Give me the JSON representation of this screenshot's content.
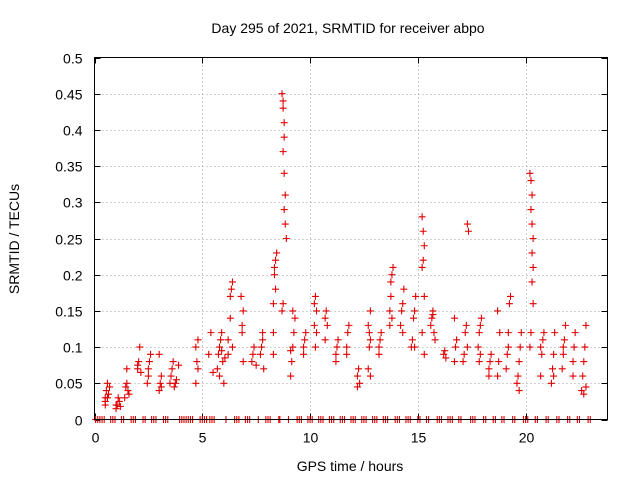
{
  "chart_data": {
    "type": "scatter",
    "title": "Day 295 of 2021, SRMTID for receiver abpo",
    "xlabel": "GPS time / hours",
    "ylabel": "SRMTID / TECUs",
    "xlim": [
      0,
      23.8
    ],
    "ylim": [
      0,
      0.5
    ],
    "x_ticks": [
      0,
      5,
      10,
      15,
      20
    ],
    "x_tick_labels": [
      "0",
      "5",
      "10",
      "15",
      "20"
    ],
    "y_ticks": [
      0,
      0.05,
      0.1,
      0.15,
      0.2,
      0.25,
      0.3,
      0.35,
      0.4,
      0.45,
      0.5
    ],
    "y_tick_labels": [
      "0",
      "0.05",
      "0.1",
      "0.15",
      "0.2",
      "0.25",
      "0.3",
      "0.35",
      "0.4",
      "0.45",
      "0.5"
    ],
    "grid": true,
    "marker": "+",
    "marker_color": "#e00000",
    "series": [
      {
        "name": "SRMTID",
        "points": [
          [
            0.5,
            0.02
          ],
          [
            0.5,
            0.03
          ],
          [
            0.55,
            0.04
          ],
          [
            0.6,
            0.05
          ],
          [
            0.65,
            0.035
          ],
          [
            0.7,
            0.045
          ],
          [
            0.5,
            0.025
          ],
          [
            0.6,
            0.03
          ],
          [
            1.0,
            0.015
          ],
          [
            1.05,
            0.02
          ],
          [
            1.1,
            0.03
          ],
          [
            1.15,
            0.025
          ],
          [
            1.0,
            0.02
          ],
          [
            1.2,
            0.018
          ],
          [
            1.4,
            0.03
          ],
          [
            1.5,
            0.05
          ],
          [
            1.55,
            0.04
          ],
          [
            1.6,
            0.035
          ],
          [
            1.45,
            0.045
          ],
          [
            1.5,
            0.07
          ],
          [
            2.0,
            0.07
          ],
          [
            2.05,
            0.08
          ],
          [
            2.1,
            0.1
          ],
          [
            2.0,
            0.075
          ],
          [
            2.15,
            0.065
          ],
          [
            2.5,
            0.06
          ],
          [
            2.55,
            0.08
          ],
          [
            2.6,
            0.09
          ],
          [
            2.5,
            0.07
          ],
          [
            2.45,
            0.05
          ],
          [
            3.0,
            0.04
          ],
          [
            3.05,
            0.05
          ],
          [
            3.1,
            0.06
          ],
          [
            3.0,
            0.09
          ],
          [
            3.1,
            0.045
          ],
          [
            3.5,
            0.05
          ],
          [
            3.55,
            0.06
          ],
          [
            3.6,
            0.07
          ],
          [
            3.65,
            0.08
          ],
          [
            3.7,
            0.045
          ],
          [
            3.8,
            0.055
          ],
          [
            3.9,
            0.075
          ],
          [
            3.75,
            0.05
          ],
          [
            4.7,
            0.1
          ],
          [
            4.75,
            0.08
          ],
          [
            4.8,
            0.11
          ],
          [
            4.7,
            0.05
          ],
          [
            4.8,
            0.07
          ],
          [
            5.3,
            0.09
          ],
          [
            5.4,
            0.12
          ],
          [
            5.5,
            0.065
          ],
          [
            5.7,
            0.07
          ],
          [
            5.75,
            0.09
          ],
          [
            5.8,
            0.1
          ],
          [
            5.85,
            0.11
          ],
          [
            5.9,
            0.12
          ],
          [
            5.95,
            0.08
          ],
          [
            6.0,
            0.05
          ],
          [
            5.8,
            0.06
          ],
          [
            6.05,
            0.085
          ],
          [
            5.9,
            0.095
          ],
          [
            6.3,
            0.14
          ],
          [
            6.35,
            0.18
          ],
          [
            6.4,
            0.19
          ],
          [
            6.3,
            0.17
          ],
          [
            6.2,
            0.09
          ],
          [
            6.4,
            0.1
          ],
          [
            6.2,
            0.11
          ],
          [
            6.8,
            0.17
          ],
          [
            6.85,
            0.13
          ],
          [
            6.9,
            0.15
          ],
          [
            6.9,
            0.08
          ],
          [
            6.85,
            0.12
          ],
          [
            7.3,
            0.08
          ],
          [
            7.35,
            0.09
          ],
          [
            7.4,
            0.1
          ],
          [
            7.5,
            0.075
          ],
          [
            7.7,
            0.09
          ],
          [
            7.75,
            0.1
          ],
          [
            7.8,
            0.11
          ],
          [
            7.85,
            0.07
          ],
          [
            7.8,
            0.12
          ],
          [
            8.3,
            0.12
          ],
          [
            8.35,
            0.21
          ],
          [
            8.4,
            0.22
          ],
          [
            8.45,
            0.23
          ],
          [
            8.4,
            0.18
          ],
          [
            8.3,
            0.16
          ],
          [
            8.35,
            0.2
          ],
          [
            8.3,
            0.09
          ],
          [
            8.7,
            0.45
          ],
          [
            8.75,
            0.43
          ],
          [
            8.8,
            0.41
          ],
          [
            8.75,
            0.44
          ],
          [
            8.8,
            0.39
          ],
          [
            8.75,
            0.37
          ],
          [
            8.8,
            0.34
          ],
          [
            8.85,
            0.31
          ],
          [
            8.8,
            0.29
          ],
          [
            8.85,
            0.27
          ],
          [
            8.9,
            0.25
          ],
          [
            8.7,
            0.15
          ],
          [
            8.75,
            0.16
          ],
          [
            9.1,
            0.06
          ],
          [
            9.15,
            0.08
          ],
          [
            9.2,
            0.1
          ],
          [
            9.25,
            0.12
          ],
          [
            9.3,
            0.14
          ],
          [
            9.2,
            0.15
          ],
          [
            9.1,
            0.095
          ],
          [
            9.7,
            0.1
          ],
          [
            9.75,
            0.11
          ],
          [
            9.8,
            0.12
          ],
          [
            9.7,
            0.09
          ],
          [
            10.2,
            0.16
          ],
          [
            10.25,
            0.17
          ],
          [
            10.3,
            0.15
          ],
          [
            10.2,
            0.13
          ],
          [
            10.3,
            0.12
          ],
          [
            10.25,
            0.1
          ],
          [
            10.7,
            0.14
          ],
          [
            10.75,
            0.15
          ],
          [
            10.8,
            0.13
          ],
          [
            10.7,
            0.11
          ],
          [
            11.2,
            0.09
          ],
          [
            11.25,
            0.1
          ],
          [
            11.3,
            0.11
          ],
          [
            11.2,
            0.08
          ],
          [
            11.7,
            0.1
          ],
          [
            11.75,
            0.12
          ],
          [
            11.8,
            0.13
          ],
          [
            11.7,
            0.09
          ],
          [
            12.2,
            0.06
          ],
          [
            12.25,
            0.07
          ],
          [
            12.3,
            0.05
          ],
          [
            12.2,
            0.045
          ],
          [
            12.7,
            0.07
          ],
          [
            12.75,
            0.1
          ],
          [
            12.8,
            0.11
          ],
          [
            12.7,
            0.13
          ],
          [
            12.8,
            0.15
          ],
          [
            12.75,
            0.12
          ],
          [
            12.8,
            0.06
          ],
          [
            13.2,
            0.09
          ],
          [
            13.25,
            0.11
          ],
          [
            13.3,
            0.12
          ],
          [
            13.2,
            0.1
          ],
          [
            13.7,
            0.15
          ],
          [
            13.75,
            0.19
          ],
          [
            13.8,
            0.2
          ],
          [
            13.85,
            0.21
          ],
          [
            13.75,
            0.17
          ],
          [
            13.7,
            0.13
          ],
          [
            13.8,
            0.14
          ],
          [
            14.2,
            0.13
          ],
          [
            14.25,
            0.15
          ],
          [
            14.3,
            0.16
          ],
          [
            14.35,
            0.18
          ],
          [
            14.3,
            0.12
          ],
          [
            14.7,
            0.1
          ],
          [
            14.75,
            0.11
          ],
          [
            14.8,
            0.14
          ],
          [
            14.85,
            0.15
          ],
          [
            14.9,
            0.17
          ],
          [
            14.85,
            0.1
          ],
          [
            15.2,
            0.28
          ],
          [
            15.25,
            0.26
          ],
          [
            15.3,
            0.24
          ],
          [
            15.25,
            0.22
          ],
          [
            15.2,
            0.21
          ],
          [
            15.3,
            0.17
          ],
          [
            15.2,
            0.12
          ],
          [
            15.3,
            0.09
          ],
          [
            15.6,
            0.13
          ],
          [
            15.65,
            0.14
          ],
          [
            15.7,
            0.15
          ],
          [
            15.75,
            0.12
          ],
          [
            15.8,
            0.11
          ],
          [
            15.7,
            0.145
          ],
          [
            16.2,
            0.09
          ],
          [
            16.25,
            0.095
          ],
          [
            16.3,
            0.085
          ],
          [
            16.7,
            0.08
          ],
          [
            16.75,
            0.1
          ],
          [
            16.8,
            0.11
          ],
          [
            16.7,
            0.14
          ],
          [
            17.1,
            0.08
          ],
          [
            17.15,
            0.09
          ],
          [
            17.2,
            0.12
          ],
          [
            17.25,
            0.13
          ],
          [
            17.3,
            0.27
          ],
          [
            17.35,
            0.26
          ],
          [
            17.3,
            0.1
          ],
          [
            17.8,
            0.1
          ],
          [
            17.85,
            0.12
          ],
          [
            17.9,
            0.13
          ],
          [
            17.95,
            0.14
          ],
          [
            17.9,
            0.09
          ],
          [
            17.85,
            0.08
          ],
          [
            18.3,
            0.07
          ],
          [
            18.35,
            0.08
          ],
          [
            18.4,
            0.09
          ],
          [
            18.3,
            0.06
          ],
          [
            18.7,
            0.06
          ],
          [
            18.75,
            0.08
          ],
          [
            18.8,
            0.12
          ],
          [
            18.7,
            0.15
          ],
          [
            19.1,
            0.07
          ],
          [
            19.15,
            0.09
          ],
          [
            19.2,
            0.1
          ],
          [
            19.25,
            0.16
          ],
          [
            19.3,
            0.17
          ],
          [
            19.2,
            0.12
          ],
          [
            19.6,
            0.05
          ],
          [
            19.65,
            0.06
          ],
          [
            19.7,
            0.08
          ],
          [
            19.75,
            0.1
          ],
          [
            19.8,
            0.12
          ],
          [
            19.7,
            0.04
          ],
          [
            20.2,
            0.34
          ],
          [
            20.25,
            0.33
          ],
          [
            20.3,
            0.31
          ],
          [
            20.25,
            0.29
          ],
          [
            20.3,
            0.27
          ],
          [
            20.35,
            0.25
          ],
          [
            20.3,
            0.23
          ],
          [
            20.35,
            0.21
          ],
          [
            20.3,
            0.19
          ],
          [
            20.35,
            0.16
          ],
          [
            20.25,
            0.12
          ],
          [
            20.2,
            0.1
          ],
          [
            20.7,
            0.06
          ],
          [
            20.75,
            0.09
          ],
          [
            20.8,
            0.11
          ],
          [
            20.85,
            0.12
          ],
          [
            20.7,
            0.1
          ],
          [
            21.2,
            0.05
          ],
          [
            21.25,
            0.07
          ],
          [
            21.3,
            0.09
          ],
          [
            21.35,
            0.12
          ],
          [
            21.3,
            0.06
          ],
          [
            21.7,
            0.07
          ],
          [
            21.75,
            0.09
          ],
          [
            21.8,
            0.11
          ],
          [
            21.85,
            0.13
          ],
          [
            21.75,
            0.1
          ],
          [
            22.2,
            0.08
          ],
          [
            22.25,
            0.1
          ],
          [
            22.3,
            0.12
          ],
          [
            22.2,
            0.06
          ],
          [
            22.6,
            0.04
          ],
          [
            22.65,
            0.06
          ],
          [
            22.7,
            0.08
          ],
          [
            22.75,
            0.1
          ],
          [
            22.8,
            0.13
          ],
          [
            22.7,
            0.035
          ],
          [
            22.8,
            0.045
          ]
        ],
        "zero_value_hours": [
          0.05,
          0.15,
          0.25,
          0.35,
          0.45,
          0.75,
          0.85,
          0.95,
          1.25,
          1.35,
          1.7,
          1.8,
          1.9,
          2.25,
          2.35,
          2.65,
          2.75,
          2.85,
          3.2,
          3.3,
          3.4,
          3.95,
          4.05,
          4.15,
          4.25,
          4.35,
          4.45,
          4.55,
          4.9,
          5.0,
          5.1,
          5.2,
          5.35,
          5.45,
          5.55,
          6.1,
          6.5,
          6.6,
          6.7,
          7.0,
          7.1,
          7.2,
          7.6,
          7.95,
          8.05,
          8.15,
          8.55,
          8.6,
          9.0,
          9.4,
          9.5,
          9.6,
          9.9,
          10.0,
          10.1,
          10.4,
          10.5,
          10.6,
          10.9,
          11.0,
          11.1,
          11.4,
          11.5,
          11.6,
          11.9,
          12.0,
          12.1,
          12.4,
          12.5,
          12.6,
          12.9,
          13.0,
          13.1,
          13.4,
          13.5,
          13.6,
          13.95,
          14.05,
          14.15,
          14.45,
          14.55,
          14.65,
          15.0,
          15.1,
          15.4,
          15.5,
          15.9,
          16.0,
          16.1,
          16.4,
          16.5,
          16.6,
          16.9,
          17.0,
          17.45,
          17.55,
          17.65,
          18.05,
          18.15,
          18.5,
          18.6,
          18.9,
          19.0,
          19.4,
          19.5,
          19.9,
          20.0,
          20.1,
          20.45,
          20.55,
          20.95,
          21.05,
          21.45,
          21.55,
          21.95,
          22.05,
          22.4,
          22.5,
          22.9,
          23.0
        ]
      }
    ]
  }
}
